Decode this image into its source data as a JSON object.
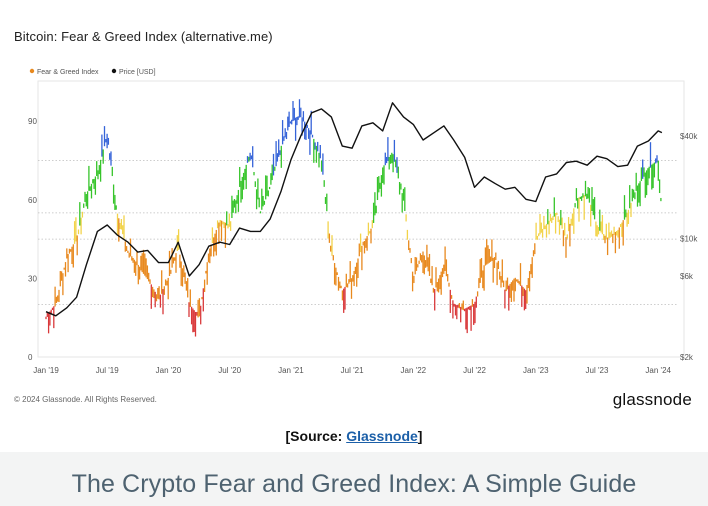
{
  "chart_data": {
    "type": "line",
    "title": "Bitcoin: Fear & Greed Index (alternative.me)",
    "legend": [
      {
        "label": "Fear & Greed Index",
        "color": "#e8891e"
      },
      {
        "label": "Price [USD]",
        "color": "#111111"
      }
    ],
    "legend_position": "top-left",
    "x_ticks": [
      "Jan '19",
      "Jul '19",
      "Jan '20",
      "Jul '20",
      "Jan '21",
      "Jul '21",
      "Jan '22",
      "Jul '22",
      "Jan '23",
      "Jul '23",
      "Jan '24"
    ],
    "y_left": {
      "ticks": [
        "0",
        "30",
        "60",
        "90"
      ],
      "range": [
        0,
        100
      ]
    },
    "y_right": {
      "ticks": [
        "$2k",
        "$6k",
        "$10k",
        "$40k"
      ],
      "scale": "log",
      "range": [
        2000,
        70000
      ]
    },
    "zone_colors": {
      "extreme_fear": "#d9383a",
      "fear": "#e8891e",
      "neutral": "#f2d34a",
      "greed": "#36c42a",
      "extreme_greed": "#3563d8"
    },
    "series": [
      {
        "name": "Fear & Greed Index",
        "x": [
          2019.0,
          2019.08,
          2019.17,
          2019.25,
          2019.33,
          2019.42,
          2019.5,
          2019.58,
          2019.67,
          2019.75,
          2019.83,
          2019.92,
          2020.0,
          2020.08,
          2020.17,
          2020.25,
          2020.33,
          2020.42,
          2020.5,
          2020.58,
          2020.67,
          2020.75,
          2020.83,
          2020.92,
          2021.0,
          2021.08,
          2021.17,
          2021.25,
          2021.33,
          2021.42,
          2021.5,
          2021.58,
          2021.67,
          2021.75,
          2021.83,
          2021.92,
          2022.0,
          2022.08,
          2022.17,
          2022.25,
          2022.33,
          2022.42,
          2022.5,
          2022.58,
          2022.67,
          2022.75,
          2022.83,
          2022.92,
          2023.0,
          2023.08,
          2023.17,
          2023.25,
          2023.33,
          2023.42,
          2023.5,
          2023.58,
          2023.67,
          2023.75,
          2023.83,
          2023.92,
          2024.0,
          2024.03
        ],
        "values": [
          15,
          20,
          38,
          45,
          62,
          70,
          85,
          55,
          40,
          35,
          30,
          22,
          30,
          42,
          20,
          15,
          40,
          52,
          50,
          65,
          78,
          55,
          65,
          80,
          90,
          92,
          85,
          75,
          40,
          25,
          30,
          42,
          50,
          72,
          78,
          60,
          30,
          40,
          25,
          35,
          20,
          18,
          20,
          35,
          38,
          25,
          30,
          25,
          45,
          50,
          55,
          45,
          60,
          62,
          50,
          45,
          48,
          55,
          65,
          72,
          75,
          55
        ]
      },
      {
        "name": "Price [USD]",
        "x": [
          2019.0,
          2019.08,
          2019.17,
          2019.25,
          2019.33,
          2019.42,
          2019.5,
          2019.58,
          2019.67,
          2019.75,
          2019.83,
          2019.92,
          2020.0,
          2020.08,
          2020.17,
          2020.25,
          2020.33,
          2020.42,
          2020.5,
          2020.58,
          2020.67,
          2020.75,
          2020.83,
          2020.92,
          2021.0,
          2021.08,
          2021.17,
          2021.25,
          2021.33,
          2021.42,
          2021.5,
          2021.58,
          2021.67,
          2021.75,
          2021.83,
          2021.92,
          2022.0,
          2022.08,
          2022.17,
          2022.25,
          2022.33,
          2022.42,
          2022.5,
          2022.58,
          2022.67,
          2022.75,
          2022.83,
          2022.92,
          2023.0,
          2023.08,
          2023.17,
          2023.25,
          2023.33,
          2023.42,
          2023.5,
          2023.58,
          2023.67,
          2023.75,
          2023.83,
          2023.92,
          2024.0,
          2024.03
        ],
        "values": [
          3700,
          3500,
          3900,
          4500,
          7000,
          11000,
          12000,
          10500,
          9500,
          8300,
          8500,
          7200,
          7200,
          9500,
          6000,
          7000,
          9000,
          9500,
          9200,
          11500,
          11000,
          11000,
          13000,
          19000,
          29000,
          40000,
          55000,
          58000,
          52000,
          35000,
          34000,
          46000,
          48000,
          43000,
          63000,
          52000,
          47000,
          38000,
          42000,
          46000,
          38000,
          30000,
          20000,
          23000,
          21000,
          19500,
          20000,
          17000,
          16500,
          23000,
          24000,
          28000,
          28500,
          27000,
          30500,
          29500,
          26500,
          27000,
          35000,
          37500,
          43000,
          42000
        ]
      }
    ]
  },
  "footer": {
    "copyright": "© 2024 Glassnode. All Rights Reserved.",
    "brand": "glassnode"
  },
  "source": {
    "prefix": "[Source: ",
    "link_text": "Glassnode",
    "suffix": "]"
  },
  "page_heading": "The Crypto Fear and Greed Index: A Simple Guide"
}
